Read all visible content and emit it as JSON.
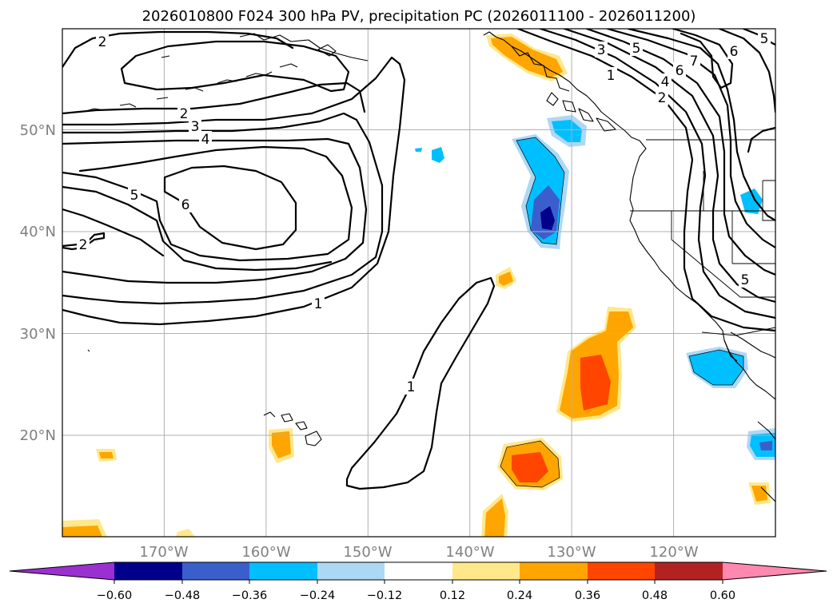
{
  "title": "2026010800 F024 300 hPa PV, precipitation PC (2026011100 - 2026011200)",
  "lat_labels": [
    "50°N",
    "40°N",
    "30°N",
    "20°N"
  ],
  "lon_labels": [
    "170°W",
    "160°W",
    "150°W",
    "140°W",
    "130°W",
    "120°W"
  ],
  "colorbar": {
    "tick_labels": [
      "−0.60",
      "−0.48",
      "−0.36",
      "−0.24",
      "−0.12",
      "0.12",
      "0.24",
      "0.36",
      "0.48",
      "0.60"
    ],
    "colors": [
      "#9b30d0",
      "#00008b",
      "#3a5fcd",
      "#00bfff",
      "#add8f5",
      "#ffffff",
      "#ffe88a",
      "#ffa500",
      "#ff4500",
      "#b22222",
      "#ff88b0"
    ]
  },
  "pv_contour_labels": {
    "c1": "2",
    "c2": "2",
    "c3": "3",
    "c4": "4",
    "c5": "5",
    "c6": "6",
    "c7": "2",
    "c8": "1",
    "c9": "1",
    "c10": "3",
    "c11": "5",
    "c12": "1",
    "c13": "6",
    "c14": "7",
    "c15": "4",
    "c16": "2",
    "c17": "6",
    "c18": "5",
    "c19": "5"
  },
  "chart_data": {
    "type": "map",
    "projection": "PlateCarree",
    "lon_range": [
      -180,
      -110
    ],
    "lat_range": [
      10,
      60
    ],
    "fields": [
      "300 hPa potential vorticity (PVU, line contours)",
      "precipitation PC (shaded)"
    ],
    "pv_levels": [
      1,
      2,
      3,
      4,
      5,
      6,
      7
    ],
    "shading_levels": [
      -0.6,
      -0.48,
      -0.36,
      -0.24,
      -0.12,
      0.12,
      0.24,
      0.36,
      0.48,
      0.6
    ]
  }
}
